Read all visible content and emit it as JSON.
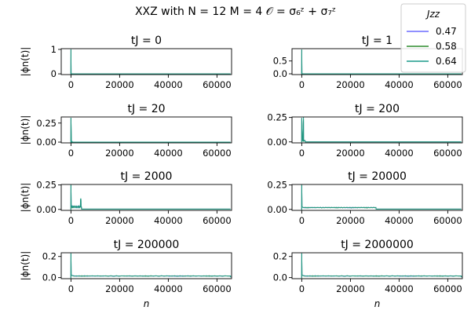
{
  "chart_data": {
    "type": "line",
    "title": "XXZ with N = 12 M = 4 𝒪 = σ₆ᶻ + σ₇ᶻ",
    "xlabel": "n",
    "ylabel": "|ϕn(t)|",
    "legend": {
      "title": "Jzz",
      "placement": "top-right",
      "entries": [
        {
          "name": "0.47",
          "color": "#6b6bff"
        },
        {
          "name": "0.58",
          "color": "#2e8b2e"
        },
        {
          "name": "0.64",
          "color": "#1a9a8a"
        }
      ]
    },
    "xlim": [
      -4000,
      66000
    ],
    "xticks": [
      0,
      20000,
      40000,
      60000
    ],
    "xtick_labels": [
      "0",
      "20000",
      "40000",
      "60000"
    ],
    "panels": [
      {
        "title": "tJ = 0",
        "ylim": [
          -0.03,
          1.03
        ],
        "yticks": [
          0.0,
          1.0
        ],
        "ytick_labels": [
          "0",
          "1"
        ],
        "profile": {
          "peak": 1.0,
          "peak_width": 60,
          "plateau": 0.0,
          "plateau_end": 0,
          "bump_x": null,
          "bump_h": 0,
          "tail": 0.0
        }
      },
      {
        "title": "tJ = 1",
        "ylim": [
          -0.03,
          0.98
        ],
        "yticks": [
          0.0,
          0.5
        ],
        "ytick_labels": [
          "0.0",
          "0.5"
        ],
        "profile": {
          "peak": 0.95,
          "peak_width": 80,
          "plateau": 0.0,
          "plateau_end": 0,
          "bump_x": null,
          "bump_h": 0,
          "tail": 0.0
        }
      },
      {
        "title": "tJ = 20",
        "ylim": [
          -0.01,
          0.33
        ],
        "yticks": [
          0.0,
          0.25
        ],
        "ytick_labels": [
          "0.00",
          "0.25"
        ],
        "profile": {
          "peak": 0.32,
          "peak_width": 150,
          "plateau": 0.003,
          "plateau_end": 500,
          "bump_x": null,
          "bump_h": 0,
          "tail": 0.0
        }
      },
      {
        "title": "tJ = 200",
        "ylim": [
          -0.01,
          0.255
        ],
        "yticks": [
          0.0,
          0.25
        ],
        "ytick_labels": [
          "0.00",
          "0.25"
        ],
        "profile": {
          "peak": 0.245,
          "peak_width": 400,
          "plateau": 0.01,
          "plateau_end": 1400,
          "bump_x": 700,
          "bump_h": 0.23,
          "tail": 0.0
        }
      },
      {
        "title": "tJ = 2000",
        "ylim": [
          -0.01,
          0.255
        ],
        "yticks": [
          0.0,
          0.25
        ],
        "ytick_labels": [
          "0.00",
          "0.25"
        ],
        "profile": {
          "peak": 0.25,
          "peak_width": 100,
          "plateau": 0.025,
          "plateau_end": 4300,
          "bump_x": 4000,
          "bump_h": 0.1,
          "tail": 0.003
        }
      },
      {
        "title": "tJ = 20000",
        "ylim": [
          -0.01,
          0.255
        ],
        "yticks": [
          0.0,
          0.25
        ],
        "ytick_labels": [
          "0.00",
          "0.25"
        ],
        "profile": {
          "peak": 0.25,
          "peak_width": 100,
          "plateau": 0.018,
          "plateau_end": 30500,
          "bump_x": null,
          "bump_h": 0,
          "tail": 0.003
        }
      },
      {
        "title": "tJ = 200000",
        "ylim": [
          -0.01,
          0.235
        ],
        "yticks": [
          0.0,
          0.2
        ],
        "ytick_labels": [
          "0.0",
          "0.2"
        ],
        "profile": {
          "peak": 0.23,
          "peak_width": 100,
          "plateau": 0.015,
          "plateau_end": 65536,
          "bump_x": null,
          "bump_h": 0,
          "tail": 0.005
        }
      },
      {
        "title": "tJ = 2000000",
        "ylim": [
          -0.01,
          0.235
        ],
        "yticks": [
          0.0,
          0.2
        ],
        "ytick_labels": [
          "0.0",
          "0.2"
        ],
        "profile": {
          "peak": 0.23,
          "peak_width": 100,
          "plateau": 0.015,
          "plateau_end": 65536,
          "bump_x": null,
          "bump_h": 0,
          "tail": 0.005
        }
      }
    ]
  }
}
